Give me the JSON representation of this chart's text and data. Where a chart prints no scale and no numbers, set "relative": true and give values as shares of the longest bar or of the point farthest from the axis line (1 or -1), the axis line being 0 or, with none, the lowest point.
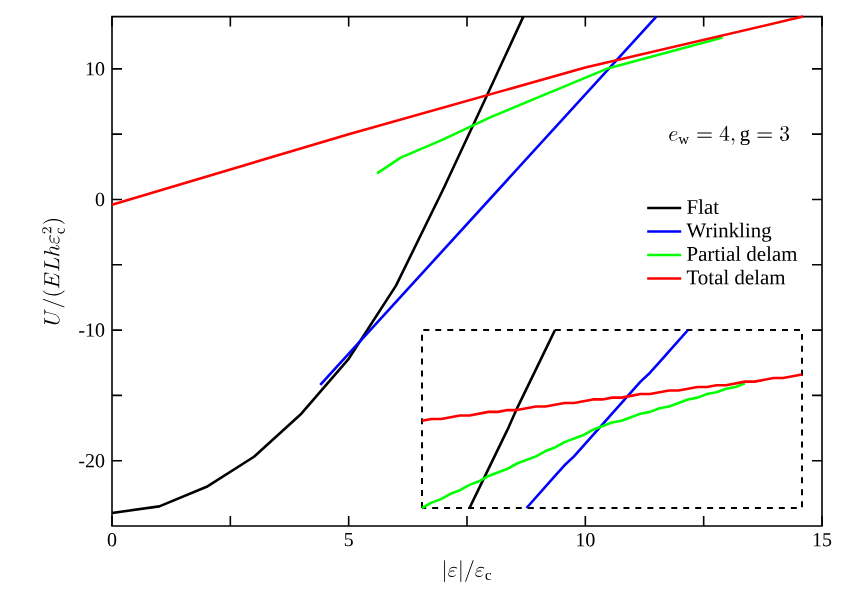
{
  "chart_data": [
    {
      "type": "line",
      "xlabel": "|\\varepsilon|/\\varepsilon_{\\mathrm{c}}",
      "ylabel": "U/(ELh\\varepsilon_{\\mathrm{c}}^2)",
      "annotations": [
        "e_{\\mathrm{w}} = 4, \\mathrm{g} = 3"
      ],
      "xlim": [
        0,
        15
      ],
      "ylim": [
        -25,
        14
      ],
      "xticks": [
        0,
        {
          "value": 2.5,
          "label": null
        },
        5,
        {
          "value": 7.5,
          "label": null
        },
        10,
        {
          "value": 12.5,
          "label": null
        },
        15
      ],
      "yticks": [
        -20,
        {
          "value": -15,
          "label": null
        },
        -10,
        {
          "value": -5,
          "label": null
        },
        0,
        {
          "value": 5,
          "label": null
        },
        10
      ],
      "legend": "right",
      "series": [
        {
          "name": "Flat",
          "color": "#000000",
          "x": [
            0,
            1,
            2,
            3,
            4,
            5,
            6,
            7,
            7.85,
            8.69
          ],
          "values": [
            -24,
            -23.5,
            -22,
            -19.7,
            -16.4,
            -12.2,
            -6.6,
            0.8,
            7.4,
            14
          ]
        },
        {
          "name": "Wrinkling",
          "color": "#0000ff",
          "x": [
            4.4,
            11.5
          ],
          "values": [
            -14.2,
            14
          ]
        },
        {
          "name": "Partial delam",
          "color": "#00ff00",
          "x": [
            5.6,
            6.1,
            7,
            8,
            10.45,
            12.9
          ],
          "values": [
            2.0,
            3.2,
            4.6,
            6.3,
            10.0,
            12.4
          ]
        },
        {
          "name": "Total delam",
          "color": "#ff0000",
          "x": [
            0,
            5,
            10,
            14.6
          ],
          "values": [
            -0.4,
            5.0,
            10.1,
            14
          ]
        }
      ]
    },
    {
      "type": "line",
      "relative": true,
      "categories": [
        null,
        null,
        null,
        null,
        null,
        null,
        null,
        null,
        null,
        null,
        null,
        null,
        null,
        null,
        null,
        null,
        null,
        null,
        null,
        null,
        null,
        null,
        null,
        null,
        null,
        null,
        null,
        null,
        null,
        null,
        null,
        null,
        null,
        null,
        null,
        null,
        null,
        null,
        null,
        null,
        null
      ],
      "series": [
        {
          "color": "#000000",
          "values": [
            null,
            null,
            null,
            null,
            null,
            0,
            0.11,
            0.22,
            0.33,
            0.44,
            0.56,
            0.67,
            0.78,
            0.89,
            1,
            null,
            null,
            null,
            null,
            null,
            null,
            null,
            null,
            null,
            null,
            null,
            null,
            null,
            null,
            null,
            null,
            null,
            null,
            null,
            null,
            null,
            null,
            null,
            null,
            null,
            null
          ]
        },
        {
          "color": "#0000ff",
          "values": [
            null,
            null,
            null,
            null,
            null,
            null,
            null,
            null,
            null,
            null,
            null,
            0,
            0.06,
            0.12,
            0.18,
            0.24,
            0.29,
            0.35,
            0.41,
            0.47,
            0.53,
            0.59,
            0.65,
            0.71,
            0.76,
            0.82,
            0.88,
            0.94,
            1,
            null,
            null,
            null,
            null,
            null,
            null,
            null,
            null,
            null,
            null,
            null,
            null
          ]
        },
        {
          "color": "#00ff00",
          "values": [
            0,
            0.03,
            0.05,
            0.08,
            0.1,
            0.13,
            0.15,
            0.18,
            0.2,
            0.22,
            0.25,
            0.27,
            0.29,
            0.32,
            0.34,
            0.37,
            0.39,
            0.41,
            0.44,
            0.46,
            0.48,
            0.49,
            0.51,
            0.53,
            0.54,
            0.56,
            0.57,
            0.59,
            0.61,
            0.62,
            0.64,
            0.65,
            0.67,
            0.68,
            0.7,
            null,
            null,
            null,
            null,
            null,
            null
          ]
        },
        {
          "color": "#ff0000",
          "values": [
            0.49,
            0.5,
            0.5,
            0.51,
            0.52,
            0.52,
            0.53,
            0.54,
            0.54,
            0.55,
            0.55,
            0.56,
            0.57,
            0.57,
            0.58,
            0.59,
            0.59,
            0.6,
            0.61,
            0.61,
            0.62,
            0.62,
            0.63,
            0.64,
            0.64,
            0.65,
            0.66,
            0.66,
            0.67,
            0.68,
            0.68,
            0.69,
            0.69,
            0.7,
            0.71,
            0.71,
            0.72,
            0.73,
            0.73,
            0.74,
            0.75
          ]
        }
      ]
    }
  ]
}
